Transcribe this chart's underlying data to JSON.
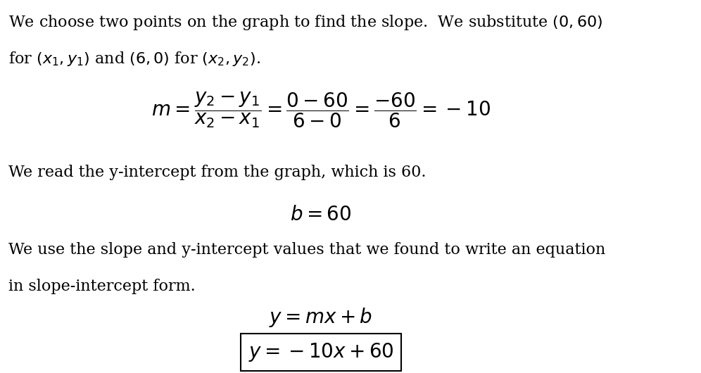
{
  "background_color": "#ffffff",
  "text_color": "#000000",
  "figsize": [
    9.96,
    5.3
  ],
  "dpi": 100,
  "line1": "We choose two points on the graph to find the slope.  We substitute $(0, 60)$",
  "line2": "for $(x_1, y_1)$ and $(6, 0)$ for $(x_2, y_2)$.",
  "slope_formula": "$m = \\dfrac{y_2 - y_1}{x_2 - x_1} = \\dfrac{0 - 60}{6 - 0} = \\dfrac{-60}{6} = -10$",
  "intercept_text": "We read the y-intercept from the graph, which is 60.",
  "intercept_formula": "$b = 60$",
  "final_text1": "We use the slope and y-intercept values that we found to write an equation",
  "final_text2": "in slope-intercept form.",
  "general_formula": "$y = mx + b$",
  "final_formula": "$y = -10x + 60$",
  "font_size_text": 16,
  "font_size_math": 18,
  "font_size_math_large": 20
}
